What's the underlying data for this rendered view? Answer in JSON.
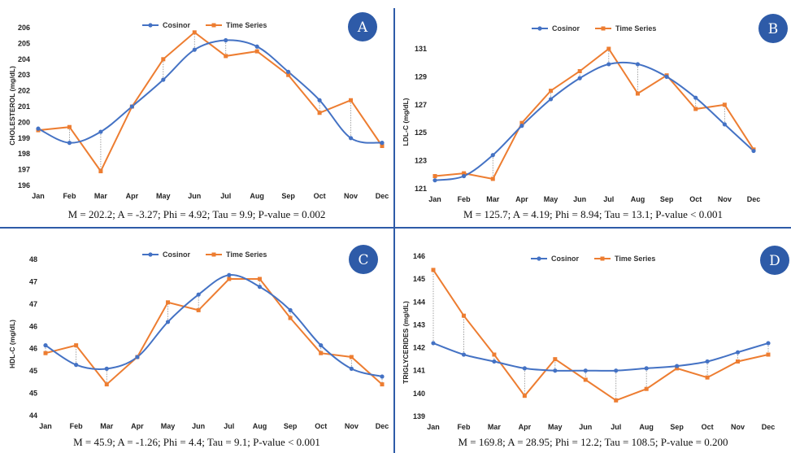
{
  "colors": {
    "cosinor": "#4472c4",
    "time_series": "#ed7d31",
    "badge": "#2e5ba8",
    "divider": "#2e5ba8"
  },
  "chart_data": [
    {
      "type": "line",
      "panel": "A",
      "ylabel": "CHOLESTEROL (mg/dL)",
      "categories": [
        "Jan",
        "Feb",
        "Mar",
        "Apr",
        "May",
        "Jun",
        "Jul",
        "Aug",
        "Sep",
        "Oct",
        "Nov",
        "Dec"
      ],
      "yticks": [
        "196",
        "197",
        "198",
        "199",
        "200",
        "201",
        "202",
        "203",
        "204",
        "205",
        "206"
      ],
      "ylim": [
        196,
        206
      ],
      "series": [
        {
          "name": "Cosinor",
          "values": [
            199.6,
            198.7,
            199.4,
            201.0,
            202.7,
            204.6,
            205.2,
            204.8,
            203.2,
            201.4,
            199.0,
            198.7
          ]
        },
        {
          "name": "Time Series",
          "values": [
            199.5,
            199.7,
            196.9,
            201.0,
            204.0,
            205.7,
            204.2,
            204.5,
            203.0,
            200.6,
            201.4,
            198.5
          ]
        }
      ],
      "stats": "M = 202.2; A = -3.27; Phi = 4.92; Tau = 9.9; P-value = 0.002"
    },
    {
      "type": "line",
      "panel": "B",
      "ylabel": "LDL-C (mg/dL)",
      "categories": [
        "Jan",
        "Feb",
        "Mar",
        "Apr",
        "May",
        "Jun",
        "Jul",
        "Aug",
        "Sep",
        "Oct",
        "Nov",
        "Dec"
      ],
      "yticks": [
        "121",
        "123",
        "125",
        "127",
        "129",
        "131"
      ],
      "ylim": [
        121,
        131
      ],
      "series": [
        {
          "name": "Cosinor",
          "values": [
            121.6,
            121.9,
            123.4,
            125.5,
            127.4,
            128.9,
            129.9,
            129.9,
            129.0,
            127.5,
            125.6,
            123.7
          ]
        },
        {
          "name": "Time Series",
          "values": [
            121.9,
            122.1,
            121.7,
            125.7,
            128.0,
            129.4,
            131.0,
            127.8,
            129.1,
            126.7,
            127.0,
            123.8
          ]
        }
      ],
      "stats": "M = 125.7; A = 4.19; Phi = 8.94; Tau = 13.1; P-value < 0.001"
    },
    {
      "type": "line",
      "panel": "C",
      "ylabel": "HDL-C (mg/dL)",
      "categories": [
        "Jan",
        "Feb",
        "Mar",
        "Apr",
        "May",
        "Jun",
        "Jul",
        "Aug",
        "Sep",
        "Oct",
        "Nov",
        "Dec"
      ],
      "yticks": [
        "44",
        "45",
        "45",
        "46",
        "46",
        "47",
        "47",
        "48"
      ],
      "ylim": [
        44,
        48
      ],
      "series": [
        {
          "name": "Cosinor",
          "values": [
            45.8,
            45.3,
            45.2,
            45.5,
            46.4,
            47.1,
            47.6,
            47.3,
            46.7,
            45.8,
            45.2,
            45.0
          ]
        },
        {
          "name": "Time Series",
          "values": [
            45.6,
            45.8,
            44.8,
            45.5,
            46.9,
            46.7,
            47.5,
            47.5,
            46.5,
            45.6,
            45.5,
            44.8
          ]
        }
      ],
      "stats": "M = 45.9; A = -1.26; Phi = 4.4; Tau = 9.1; P-value < 0.001"
    },
    {
      "type": "line",
      "panel": "D",
      "ylabel": "TRIGLYCERIDES (mg/dL)",
      "categories": [
        "Jan",
        "Feb",
        "Mar",
        "Apr",
        "May",
        "Jun",
        "Jul",
        "Aug",
        "Sep",
        "Oct",
        "Nov",
        "Dec"
      ],
      "yticks": [
        "139",
        "140",
        "141",
        "142",
        "143",
        "144",
        "145",
        "146"
      ],
      "ylim": [
        139,
        146
      ],
      "series": [
        {
          "name": "Cosinor",
          "values": [
            142.2,
            141.7,
            141.4,
            141.1,
            141.0,
            141.0,
            141.0,
            141.1,
            141.2,
            141.4,
            141.8,
            142.2
          ]
        },
        {
          "name": "Time Series",
          "values": [
            145.4,
            143.4,
            141.7,
            139.9,
            141.5,
            140.6,
            139.7,
            140.2,
            141.1,
            140.7,
            141.4,
            141.7
          ]
        }
      ],
      "stats": "M = 169.8; A = 28.95; Phi = 12.2; Tau = 108.5; P-value = 0.200"
    }
  ]
}
